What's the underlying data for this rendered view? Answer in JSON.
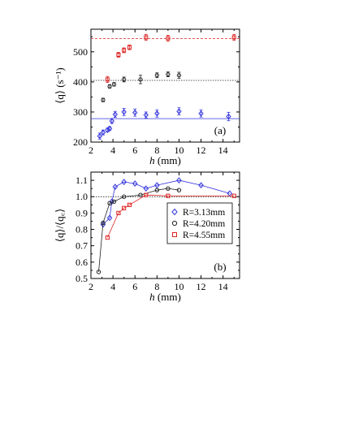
{
  "chart_data": [
    {
      "type": "scatter",
      "panel_label": "(a)",
      "ylabel": "⟨q⟩ (s⁻¹)",
      "xlabel": "h (mm)",
      "xlim": [
        2,
        15.5
      ],
      "ylim": [
        200,
        575
      ],
      "xticks": [
        2,
        4,
        6,
        8,
        10,
        12,
        14
      ],
      "yticks": [
        200,
        300,
        400,
        500
      ],
      "error_bars": true,
      "series": [
        {
          "color": "#3333dd",
          "marker": "diamond",
          "points": [
            [
              2.8,
              220
            ],
            [
              3.1,
              232
            ],
            [
              3.5,
              240
            ],
            [
              3.7,
              245
            ],
            [
              3.9,
              270
            ],
            [
              4.2,
              292
            ],
            [
              5.0,
              300
            ],
            [
              6.0,
              298
            ],
            [
              7.0,
              290
            ],
            [
              8.0,
              295
            ],
            [
              10.0,
              302
            ],
            [
              12.0,
              295
            ],
            [
              14.5,
              285
            ]
          ],
          "errors": [
            10,
            8,
            6,
            6,
            8,
            10,
            12,
            12,
            10,
            12,
            12,
            12,
            14
          ],
          "reference": 278
        },
        {
          "color": "#222222",
          "marker": "circle",
          "points": [
            [
              3.1,
              340
            ],
            [
              3.7,
              385
            ],
            [
              4.1,
              392
            ],
            [
              5.0,
              408
            ],
            [
              6.5,
              408
            ],
            [
              8.0,
              422
            ],
            [
              9.0,
              425
            ],
            [
              10.0,
              422
            ]
          ],
          "errors": [
            6,
            6,
            6,
            8,
            14,
            8,
            8,
            10
          ],
          "reference": 405
        },
        {
          "color": "#dd2222",
          "marker": "square",
          "points": [
            [
              3.5,
              408
            ],
            [
              4.5,
              490
            ],
            [
              5.0,
              505
            ],
            [
              5.5,
              515
            ],
            [
              7.0,
              548
            ],
            [
              9.0,
              545
            ],
            [
              15.0,
              548
            ]
          ],
          "errors": [
            10,
            8,
            8,
            8,
            10,
            10,
            10
          ],
          "reference": 544
        }
      ]
    },
    {
      "type": "line",
      "panel_label": "(b)",
      "ylabel": "⟨q⟩/⟨q꜀⟩",
      "xlabel": "h (mm)",
      "xlim": [
        2,
        15.5
      ],
      "ylim": [
        0.5,
        1.15
      ],
      "xticks": [
        2,
        4,
        6,
        8,
        10,
        12,
        14
      ],
      "yticks": [
        0.5,
        0.6,
        0.7,
        0.8,
        0.9,
        1.0,
        1.1
      ],
      "reference_line": 1.0,
      "legend_position": "middle-right",
      "series": [
        {
          "name": "R=3.13mm",
          "color": "#3333dd",
          "marker": "diamond",
          "x": [
            3.1,
            3.7,
            3.9,
            4.2,
            5.0,
            6.0,
            7.0,
            8.0,
            10.0,
            12.0,
            14.6
          ],
          "y": [
            0.83,
            0.87,
            0.97,
            1.06,
            1.09,
            1.08,
            1.05,
            1.07,
            1.1,
            1.07,
            1.02
          ]
        },
        {
          "name": "R=4.20mm",
          "color": "#222222",
          "marker": "circle",
          "x": [
            2.7,
            3.1,
            3.7,
            4.1,
            5.0,
            6.5,
            8.0,
            9.0,
            10.0
          ],
          "y": [
            0.54,
            0.84,
            0.96,
            0.97,
            1.0,
            1.01,
            1.04,
            1.05,
            1.04
          ]
        },
        {
          "name": "R=4.55mm",
          "color": "#dd2222",
          "marker": "square",
          "x": [
            3.5,
            4.5,
            5.0,
            5.5,
            7.0,
            9.0,
            15.0
          ],
          "y": [
            0.75,
            0.9,
            0.93,
            0.95,
            1.01,
            1.005,
            1.005
          ]
        }
      ]
    }
  ]
}
